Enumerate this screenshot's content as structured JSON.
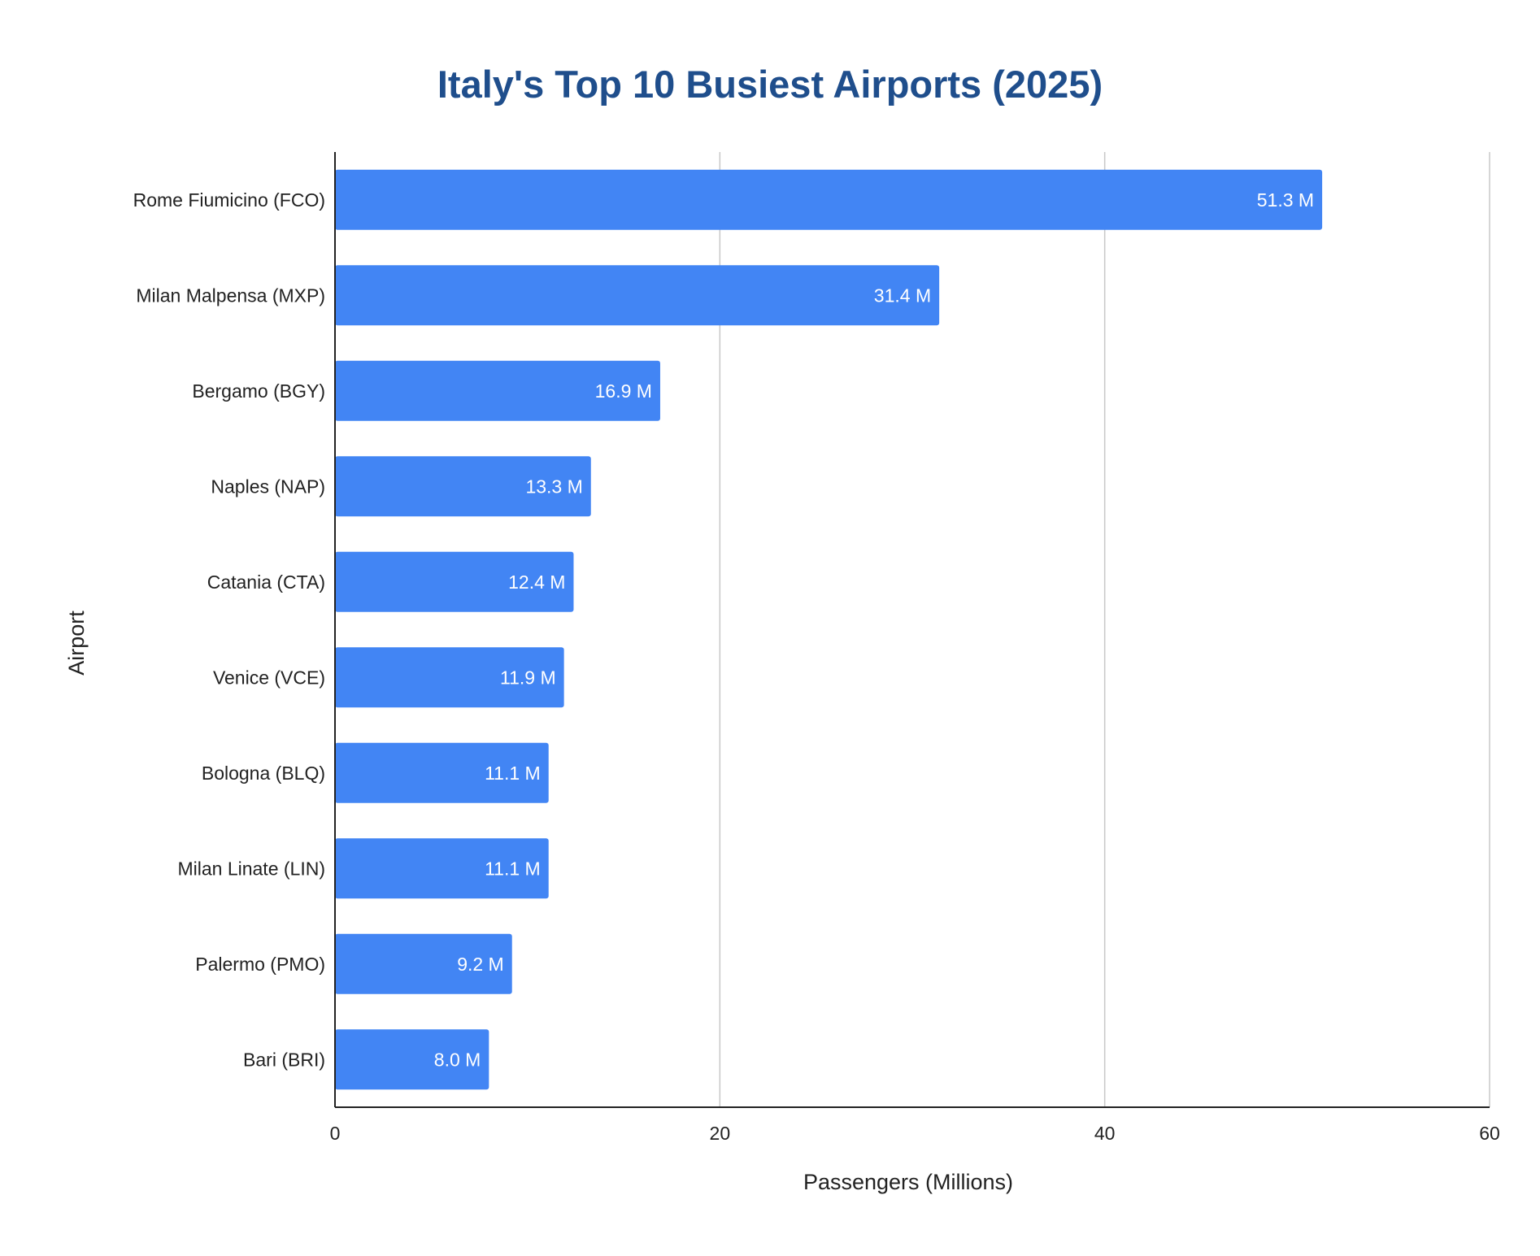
{
  "chart_data": {
    "type": "bar",
    "orientation": "horizontal",
    "title": "Italy's Top 10 Busiest Airports (2025)",
    "xlabel": "Passengers (Millions)",
    "ylabel": "Airport",
    "xlim": [
      0,
      60
    ],
    "xticks": [
      0,
      20,
      40,
      60
    ],
    "grid": "vertical",
    "legend": "none",
    "categories": [
      "Rome Fiumicino (FCO)",
      "Milan Malpensa (MXP)",
      "Bergamo (BGY)",
      "Naples (NAP)",
      "Catania (CTA)",
      "Venice (VCE)",
      "Bologna (BLQ)",
      "Milan Linate (LIN)",
      "Palermo (PMO)",
      "Bari (BRI)"
    ],
    "values": [
      51.3,
      31.4,
      16.9,
      13.3,
      12.4,
      11.9,
      11.1,
      11.1,
      9.2,
      8.0
    ],
    "data_labels": [
      "51.3 M",
      "31.4 M",
      "16.9 M",
      "13.3 M",
      "12.4 M",
      "11.9 M",
      "11.1 M",
      "11.1 M",
      "9.2 M",
      "8.0 M"
    ]
  },
  "colors": {
    "bar": "#4285f4",
    "title": "#1f4e8c",
    "grid": "#c8c8c8",
    "axis": "#222222"
  }
}
